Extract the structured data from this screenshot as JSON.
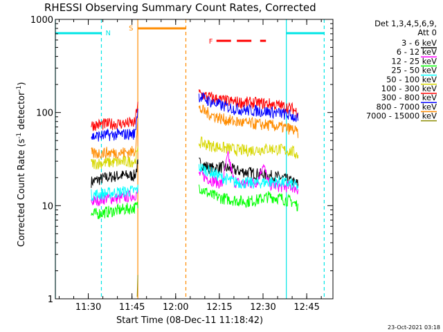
{
  "chart_data": {
    "type": "line",
    "title": "RHESSI Observing Summary Count Rates, Corrected",
    "xlabel": "Start Time (08-Dec-11 11:18:42)",
    "ylabel_main": "Corrected Count Rate (s",
    "ylabel_sup1": "-1",
    "ylabel_mid": " detector",
    "ylabel_sup2": "-1",
    "ylabel_end": ")",
    "xlim": [
      "11:18:42",
      "12:54:00"
    ],
    "ylim": [
      1,
      1000
    ],
    "yscale": "log",
    "x_ticks": [
      "11:30",
      "11:45",
      "12:00",
      "12:15",
      "12:30",
      "12:45"
    ],
    "y_ticks": [
      "1",
      "10",
      "100",
      "1000"
    ],
    "legend_title_line1": "Det 1,3,4,5,6,9,",
    "legend_title_line2": "Att 0",
    "legend_position": "right, outside",
    "footer_timestamp": "23-Oct-2021 03:18",
    "flags": {
      "N_label": "N",
      "S_label": "S",
      "F_label": "F",
      "N_color": "#00e5e5",
      "S_color": "#ff8c00",
      "F_color": "#ff0000"
    },
    "night_bars": [
      [
        "11:18:42",
        "11:34:30"
      ],
      [
        "12:38:00",
        "12:51:00"
      ]
    ],
    "saa_bar": [
      "11:47:00",
      "12:03:30"
    ],
    "flare_bars": [
      [
        "12:14:00",
        "12:19:00"
      ],
      [
        "12:21:00",
        "12:26:00"
      ],
      [
        "12:29:00",
        "12:31:00"
      ]
    ],
    "night_lines_dashed": [
      "11:34:30",
      "12:51:00"
    ],
    "night_lines_solid": [
      "11:18:42",
      "12:38:00"
    ],
    "saa_line_solid": "11:47:00",
    "saa_line_dashed": "12:03:30",
    "data_gaps": [
      [
        "11:47:00",
        "12:08:00"
      ],
      [
        "12:42:00",
        "12:54:00"
      ]
    ],
    "series": [
      {
        "name": "3 - 6 keV",
        "color": "#000000",
        "x": [
          "11:31",
          "11:36",
          "11:41",
          "11:46",
          "11:47",
          "12:08",
          "12:12",
          "12:16",
          "12:20",
          "12:24",
          "12:28",
          "12:32",
          "12:36",
          "12:40",
          "12:42"
        ],
        "y": [
          18,
          20,
          21,
          21,
          28,
          29,
          25,
          26,
          24,
          23,
          22,
          21,
          20,
          18,
          17
        ]
      },
      {
        "name": "6 - 12 keV",
        "color": "#ff00ff",
        "x": [
          "11:31",
          "11:36",
          "11:41",
          "11:46",
          "11:47",
          "12:08",
          "12:12",
          "12:16",
          "12:18",
          "12:20",
          "12:24",
          "12:28",
          "12:30",
          "12:32",
          "12:36",
          "12:40",
          "12:42"
        ],
        "y": [
          11,
          12,
          12,
          13,
          14,
          22,
          19,
          17,
          35,
          18,
          17,
          18,
          28,
          17,
          16,
          16,
          15
        ]
      },
      {
        "name": "12 - 25 keV",
        "color": "#00ff00",
        "x": [
          "11:31",
          "11:36",
          "11:41",
          "11:46",
          "11:47",
          "12:08",
          "12:12",
          "12:16",
          "12:20",
          "12:24",
          "12:28",
          "12:32",
          "12:36",
          "12:40",
          "12:42"
        ],
        "y": [
          8,
          8.5,
          9,
          9.5,
          10,
          16,
          13,
          12,
          11.5,
          11,
          11.5,
          12.5,
          12,
          11,
          10
        ]
      },
      {
        "name": "25 - 50 keV",
        "color": "#00ffff",
        "x": [
          "11:31",
          "11:36",
          "11:41",
          "11:46",
          "11:47",
          "12:08",
          "12:12",
          "12:16",
          "12:20",
          "12:24",
          "12:28",
          "12:32",
          "12:36",
          "12:40",
          "12:42"
        ],
        "y": [
          13,
          13.5,
          14,
          14.5,
          15,
          26,
          23,
          20,
          18,
          17.5,
          17.5,
          18,
          18,
          17,
          16
        ]
      },
      {
        "name": "50 - 100 keV",
        "color": "#d7d700",
        "x": [
          "11:31",
          "11:36",
          "11:41",
          "11:46",
          "11:47",
          "12:08",
          "12:12",
          "12:16",
          "12:20",
          "12:24",
          "12:28",
          "12:32",
          "12:36",
          "12:40",
          "12:42"
        ],
        "y": [
          28,
          29,
          29.5,
          30,
          38,
          48,
          44,
          42,
          40,
          39,
          40,
          41,
          40,
          38,
          35
        ]
      },
      {
        "name": "100 - 300 keV",
        "color": "#ff0000",
        "x": [
          "11:31",
          "11:36",
          "11:41",
          "11:46",
          "11:47",
          "12:08",
          "12:12",
          "12:16",
          "12:20",
          "12:24",
          "12:28",
          "12:32",
          "12:36",
          "12:40",
          "12:42"
        ],
        "y": [
          73,
          75,
          76,
          77,
          130,
          160,
          145,
          135,
          130,
          128,
          126,
          124,
          118,
          110,
          100
        ]
      },
      {
        "name": "300 - 800 keV",
        "color": "#0000ff",
        "x": [
          "11:31",
          "11:36",
          "11:41",
          "11:46",
          "11:47",
          "12:08",
          "12:12",
          "12:16",
          "12:20",
          "12:24",
          "12:28",
          "12:32",
          "12:36",
          "12:40",
          "12:42"
        ],
        "y": [
          55,
          57,
          58,
          59,
          110,
          150,
          130,
          118,
          110,
          106,
          104,
          102,
          98,
          92,
          85
        ]
      },
      {
        "name": "800 - 7000 keV",
        "color": "#ff8c00",
        "x": [
          "11:31",
          "11:36",
          "11:41",
          "11:46",
          "11:47",
          "12:08",
          "12:12",
          "12:16",
          "12:20",
          "12:24",
          "12:28",
          "12:32",
          "12:36",
          "12:40",
          "12:42"
        ],
        "y": [
          36,
          37,
          37,
          38,
          80,
          110,
          95,
          85,
          80,
          77,
          75,
          73,
          70,
          66,
          60
        ]
      },
      {
        "name": "7000 - 15000 keV",
        "color": "#8b8b00",
        "x": [
          "11:46.8",
          "11:47"
        ],
        "y": [
          1.05,
          1.8
        ]
      }
    ]
  }
}
